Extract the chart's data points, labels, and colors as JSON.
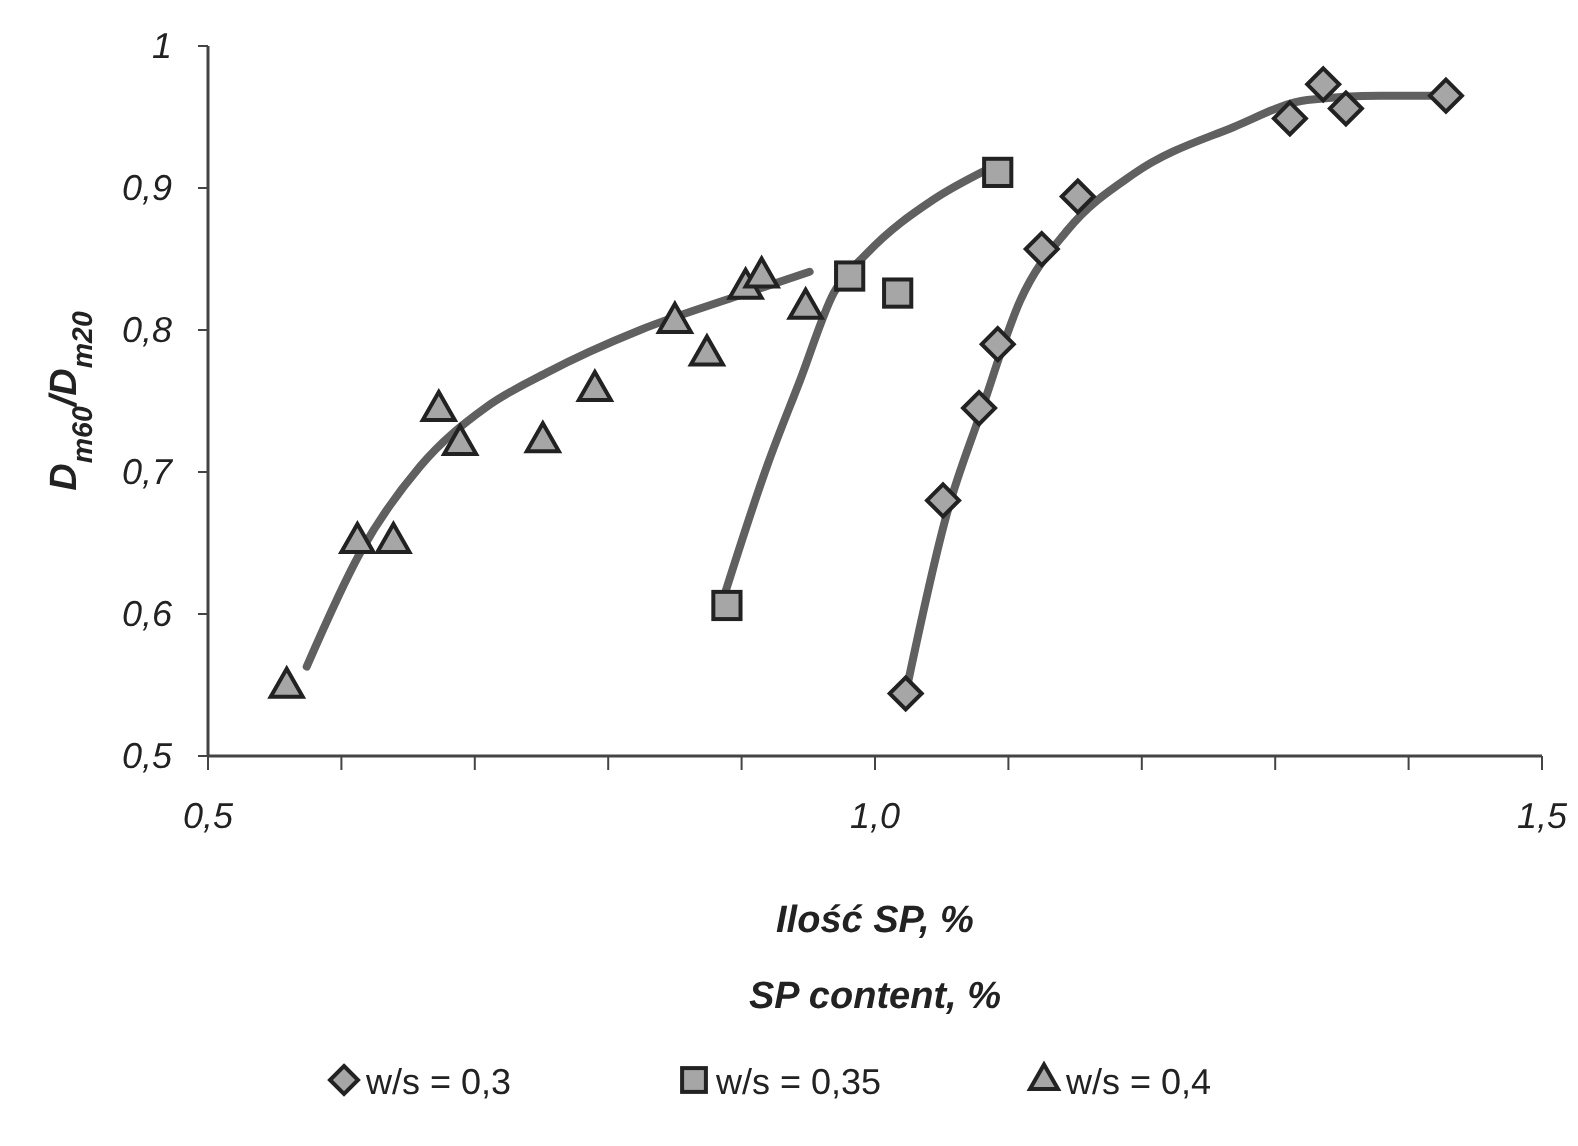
{
  "chart_data": {
    "type": "scatter",
    "ylabel": "D$_{m60}$/D$_{m20}$",
    "xlabel": "Ilość SP, %\nSP content, %",
    "xlim": [
      0.5,
      1.5
    ],
    "xticks": [
      {
        "value": 0.5,
        "label": "0,5"
      },
      {
        "value": 0.6,
        "label": null
      },
      {
        "value": 0.7,
        "label": null
      },
      {
        "value": 0.8,
        "label": null
      },
      {
        "value": 0.9,
        "label": null
      },
      {
        "value": 1.0,
        "label": "1,0"
      },
      {
        "value": 1.1,
        "label": null
      },
      {
        "value": 1.2,
        "label": null
      },
      {
        "value": 1.3,
        "label": null
      },
      {
        "value": 1.4,
        "label": null
      },
      {
        "value": 1.5,
        "label": "1,5"
      }
    ],
    "ylim": [
      0.5,
      1
    ],
    "yticks": [
      {
        "value": 0.5,
        "label": "0,5"
      },
      {
        "value": 0.6,
        "label": "0,6"
      },
      {
        "value": 0.7,
        "label": "0,7"
      },
      {
        "value": 0.8,
        "label": "0,8"
      },
      {
        "value": 0.9,
        "label": "0,9"
      },
      1
    ],
    "grid": false,
    "legend": "bottom",
    "series": [
      {
        "name": "w/s = 0,3",
        "marker": "diamond",
        "color": "#a6a6a6",
        "x": [
          1.023,
          1.051,
          1.078,
          1.092,
          1.125,
          1.152,
          1.311,
          1.336,
          1.353,
          1.428
        ],
        "values": [
          0.544,
          0.68,
          0.745,
          0.79,
          0.857,
          0.894,
          0.949,
          0.973,
          0.956,
          0.965
        ]
      },
      {
        "name": "w/s = 0,35",
        "marker": "square",
        "color": "#a6a6a6",
        "x": [
          0.889,
          0.981,
          1.017,
          1.092
        ],
        "values": [
          0.606,
          0.838,
          0.826,
          0.911
        ]
      },
      {
        "name": "w/s = 0,4",
        "marker": "triangle",
        "color": "#a6a6a6",
        "x": [
          0.559,
          0.612,
          0.639,
          0.673,
          0.689,
          0.751,
          0.79,
          0.85,
          0.874,
          0.903,
          0.915,
          0.948
        ],
        "values": [
          0.549,
          0.651,
          0.651,
          0.744,
          0.72,
          0.722,
          0.758,
          0.806,
          0.783,
          0.83,
          0.838,
          0.816
        ]
      },
      {
        "type": "line",
        "marker": "none",
        "color": "#606060",
        "x": [
          1.023,
          1.054,
          1.079,
          1.109,
          1.144,
          1.194,
          1.269,
          1.324,
          1.379,
          1.428
        ],
        "values": [
          0.544,
          0.671,
          0.741,
          0.821,
          0.87,
          0.91,
          0.943,
          0.962,
          0.965,
          0.965
        ]
      },
      {
        "type": "line",
        "marker": "none",
        "color": "#606060",
        "x": [
          0.886,
          0.919,
          0.944,
          0.969,
          0.994,
          1.044,
          1.084
        ],
        "values": [
          0.61,
          0.704,
          0.765,
          0.826,
          0.854,
          0.892,
          0.913
        ]
      },
      {
        "type": "line",
        "marker": "none",
        "color": "#606060",
        "x": [
          0.574,
          0.614,
          0.659,
          0.709,
          0.754,
          0.824,
          0.894,
          0.951
        ],
        "values": [
          0.563,
          0.643,
          0.704,
          0.746,
          0.77,
          0.8,
          0.823,
          0.841
        ]
      }
    ]
  }
}
